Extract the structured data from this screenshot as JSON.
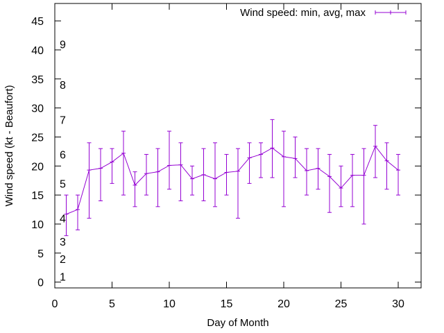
{
  "chart_data": {
    "type": "line",
    "title": "",
    "xlabel": "Day of Month",
    "ylabel": "Wind speed (kt - Beaufort)",
    "xlim": [
      0,
      32
    ],
    "ylim": [
      -1,
      48
    ],
    "xticks": [
      0,
      5,
      10,
      15,
      20,
      25,
      30
    ],
    "yticks": [
      0,
      5,
      10,
      15,
      20,
      25,
      30,
      35,
      40,
      45
    ],
    "grid": false,
    "legend_position": "top-right",
    "series": [
      {
        "name": "Wind speed: min, avg, max",
        "color": "#9400d3",
        "style": "error-bars-with-line",
        "x": [
          1,
          2,
          3,
          4,
          5,
          6,
          7,
          8,
          9,
          10,
          11,
          12,
          13,
          14,
          15,
          16,
          17,
          18,
          19,
          20,
          21,
          22,
          23,
          24,
          25,
          26,
          27,
          28,
          29,
          30
        ],
        "avg": [
          11.7,
          12.5,
          19.3,
          19.6,
          20.7,
          22.2,
          16.7,
          18.7,
          19.0,
          20.1,
          20.2,
          17.8,
          18.5,
          17.8,
          18.9,
          19.1,
          21.4,
          22.0,
          23.1,
          21.6,
          21.3,
          19.2,
          19.6,
          18.2,
          16.2,
          18.4,
          18.4,
          23.4,
          20.9,
          19.3
        ],
        "min": [
          8,
          9,
          11,
          14,
          17,
          15,
          13,
          15,
          13,
          16,
          14,
          15,
          14,
          13,
          15,
          11,
          17,
          18,
          18,
          13,
          18,
          15,
          16,
          12,
          13,
          13,
          10,
          18,
          16,
          15
        ],
        "max": [
          15,
          15,
          24,
          23,
          23,
          26,
          19,
          22,
          23,
          26,
          24,
          20,
          23,
          24,
          22,
          23,
          24,
          24,
          28,
          26,
          25,
          23,
          23,
          22,
          20,
          22,
          23,
          27,
          24,
          22
        ]
      }
    ],
    "beaufort_labels": [
      {
        "label": "1",
        "y": 1
      },
      {
        "label": "2",
        "y": 4
      },
      {
        "label": "3",
        "y": 7
      },
      {
        "label": "4",
        "y": 11
      },
      {
        "label": "5",
        "y": 17
      },
      {
        "label": "6",
        "y": 22
      },
      {
        "label": "7",
        "y": 28
      },
      {
        "label": "8",
        "y": 34
      },
      {
        "label": "9",
        "y": 41
      }
    ]
  }
}
